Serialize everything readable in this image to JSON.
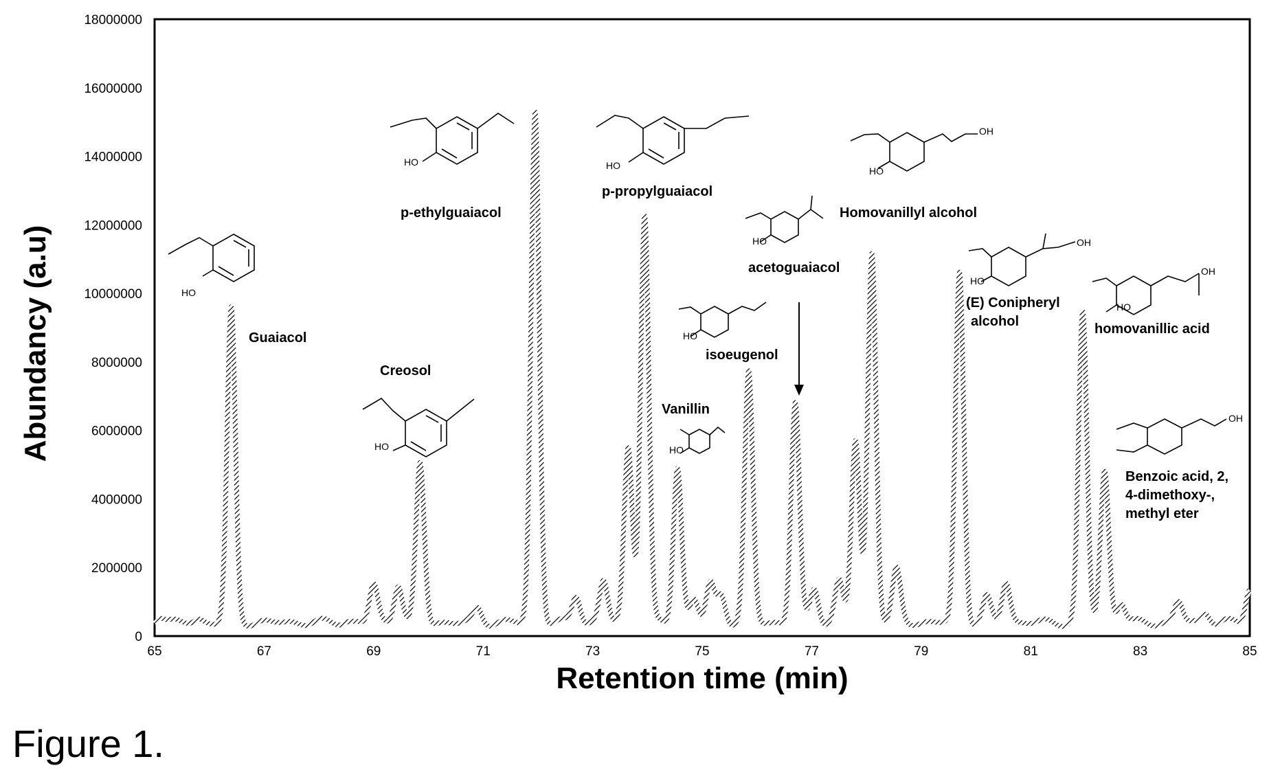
{
  "chart_data": {
    "type": "line",
    "xlabel": "Retention time (min)",
    "ylabel": "Abundancy (a.u)",
    "xlim": [
      65,
      85
    ],
    "ylim": [
      0,
      18000000
    ],
    "x_ticks": [
      "65",
      "67",
      "69",
      "71",
      "73",
      "75",
      "77",
      "79",
      "81",
      "83",
      "85"
    ],
    "y_ticks": [
      "0",
      "2000000",
      "4000000",
      "6000000",
      "8000000",
      "10000000",
      "12000000",
      "14000000",
      "16000000",
      "18000000"
    ],
    "grid": false,
    "baseline": 400000,
    "series": [
      {
        "style": "hatched",
        "peaks": [
          {
            "rt": 65.1,
            "height": 600000
          },
          {
            "rt": 65.8,
            "height": 500000
          },
          {
            "rt": 66.4,
            "height": 9500000
          },
          {
            "rt": 68.5,
            "height": 450000
          },
          {
            "rt": 69.0,
            "height": 1500000
          },
          {
            "rt": 69.45,
            "height": 1550000
          },
          {
            "rt": 69.85,
            "height": 5000000
          },
          {
            "rt": 70.9,
            "height": 800000
          },
          {
            "rt": 71.95,
            "height": 15300000
          },
          {
            "rt": 72.7,
            "height": 1200000
          },
          {
            "rt": 73.2,
            "height": 1600000
          },
          {
            "rt": 73.65,
            "height": 5500000
          },
          {
            "rt": 73.95,
            "height": 12300000
          },
          {
            "rt": 74.55,
            "height": 4950000
          },
          {
            "rt": 74.85,
            "height": 1100000
          },
          {
            "rt": 75.15,
            "height": 1500000
          },
          {
            "rt": 75.35,
            "height": 1200000
          },
          {
            "rt": 75.85,
            "height": 7650000
          },
          {
            "rt": 76.7,
            "height": 6800000
          },
          {
            "rt": 77.05,
            "height": 1400000
          },
          {
            "rt": 77.5,
            "height": 1600000
          },
          {
            "rt": 77.8,
            "height": 5700000
          },
          {
            "rt": 78.1,
            "height": 11200000
          },
          {
            "rt": 78.55,
            "height": 1900000
          },
          {
            "rt": 79.7,
            "height": 10600000
          },
          {
            "rt": 80.2,
            "height": 1100000
          },
          {
            "rt": 80.55,
            "height": 1600000
          },
          {
            "rt": 81.95,
            "height": 9400000
          },
          {
            "rt": 82.35,
            "height": 4800000
          },
          {
            "rt": 82.65,
            "height": 1000000
          },
          {
            "rt": 83.7,
            "height": 1000000
          },
          {
            "rt": 84.2,
            "height": 700000
          },
          {
            "rt": 85.0,
            "height": 1400000
          }
        ]
      }
    ],
    "annotations": [
      {
        "text": "Guaiacol",
        "rt": 66.4
      },
      {
        "text": "Creosol",
        "rt": 69.85
      },
      {
        "text": "p-ethylguaiacol",
        "rt": 71.95
      },
      {
        "text": "p-propylguaiacol",
        "rt": 73.95
      },
      {
        "text": "Vanillin",
        "rt": 74.55
      },
      {
        "text": "isoeugenol",
        "rt": 75.85
      },
      {
        "text": "acetoguaiacol",
        "rt": 76.7
      },
      {
        "text": "Homovanillyl alcohol",
        "rt": 78.1
      },
      {
        "text": "(E) Conipheryl",
        "rt": 79.7
      },
      {
        "text": "alcohol",
        "rt": 79.7
      },
      {
        "text": "homovanillic acid",
        "rt": 81.95
      },
      {
        "text": "Benzoic acid, 2,",
        "rt": 82.35
      },
      {
        "text": "4-dimethoxy-,",
        "rt": 82.35
      },
      {
        "text": "methyl eter",
        "rt": 82.35
      }
    ],
    "structure_labels": [
      "HO",
      "HO",
      "HO",
      "HO",
      "HO",
      "HO",
      "HO",
      "HO",
      "HO",
      "OH",
      "OH",
      "OH",
      "OH"
    ]
  },
  "figure_caption": "Figure 1."
}
